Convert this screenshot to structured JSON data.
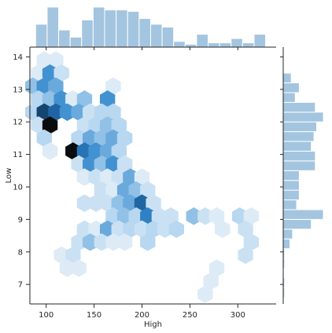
{
  "chart_data": {
    "type": "hexbin-jointplot",
    "title": "",
    "xlabel": "High",
    "ylabel": "Low",
    "xlim": [
      83,
      340
    ],
    "ylim": [
      6.4,
      14.3
    ],
    "xticks": [
      100,
      150,
      200,
      250,
      300
    ],
    "yticks": [
      7,
      8,
      9,
      10,
      11,
      12,
      13,
      14
    ],
    "grid": false,
    "legend": "none",
    "colors": {
      "hex_base": "#1f77b4",
      "marginal_bar": "#a3c5e0",
      "marginal_edge": "#ffffff"
    },
    "hexbins": [
      {
        "x": 98,
        "y": 13.9,
        "count": 1
      },
      {
        "x": 110,
        "y": 13.9,
        "count": 1
      },
      {
        "x": 92,
        "y": 13.5,
        "count": 1
      },
      {
        "x": 104,
        "y": 13.5,
        "count": 6
      },
      {
        "x": 116,
        "y": 13.5,
        "count": 2
      },
      {
        "x": 86,
        "y": 13.1,
        "count": 4
      },
      {
        "x": 98,
        "y": 13.1,
        "count": 6
      },
      {
        "x": 110,
        "y": 13.1,
        "count": 5
      },
      {
        "x": 170,
        "y": 13.1,
        "count": 1
      },
      {
        "x": 92,
        "y": 12.7,
        "count": 3
      },
      {
        "x": 104,
        "y": 12.7,
        "count": 4
      },
      {
        "x": 116,
        "y": 12.7,
        "count": 6
      },
      {
        "x": 128,
        "y": 12.7,
        "count": 1
      },
      {
        "x": 140,
        "y": 12.7,
        "count": 4
      },
      {
        "x": 164,
        "y": 12.7,
        "count": 6
      },
      {
        "x": 86,
        "y": 12.3,
        "count": 3
      },
      {
        "x": 98,
        "y": 12.3,
        "count": 11
      },
      {
        "x": 110,
        "y": 12.3,
        "count": 9
      },
      {
        "x": 122,
        "y": 12.3,
        "count": 6
      },
      {
        "x": 134,
        "y": 12.3,
        "count": 5
      },
      {
        "x": 146,
        "y": 12.3,
        "count": 2
      },
      {
        "x": 158,
        "y": 12.3,
        "count": 3
      },
      {
        "x": 170,
        "y": 12.3,
        "count": 3
      },
      {
        "x": 92,
        "y": 11.9,
        "count": 2
      },
      {
        "x": 104,
        "y": 11.9,
        "count": 14
      },
      {
        "x": 140,
        "y": 11.9,
        "count": 2
      },
      {
        "x": 152,
        "y": 11.9,
        "count": 3
      },
      {
        "x": 164,
        "y": 11.9,
        "count": 4
      },
      {
        "x": 176,
        "y": 11.9,
        "count": 3
      },
      {
        "x": 98,
        "y": 11.5,
        "count": 3
      },
      {
        "x": 134,
        "y": 11.5,
        "count": 3
      },
      {
        "x": 146,
        "y": 11.5,
        "count": 5
      },
      {
        "x": 158,
        "y": 11.5,
        "count": 4
      },
      {
        "x": 170,
        "y": 11.5,
        "count": 5
      },
      {
        "x": 182,
        "y": 11.5,
        "count": 3
      },
      {
        "x": 104,
        "y": 11.1,
        "count": 1
      },
      {
        "x": 128,
        "y": 11.1,
        "count": 14
      },
      {
        "x": 140,
        "y": 11.1,
        "count": 8
      },
      {
        "x": 152,
        "y": 11.1,
        "count": 6
      },
      {
        "x": 164,
        "y": 11.1,
        "count": 5
      },
      {
        "x": 176,
        "y": 11.1,
        "count": 3
      },
      {
        "x": 134,
        "y": 10.7,
        "count": 2
      },
      {
        "x": 146,
        "y": 10.7,
        "count": 6
      },
      {
        "x": 158,
        "y": 10.7,
        "count": 4
      },
      {
        "x": 170,
        "y": 10.7,
        "count": 6
      },
      {
        "x": 182,
        "y": 10.7,
        "count": 2
      },
      {
        "x": 140,
        "y": 10.3,
        "count": 1
      },
      {
        "x": 152,
        "y": 10.3,
        "count": 2
      },
      {
        "x": 164,
        "y": 10.3,
        "count": 1
      },
      {
        "x": 176,
        "y": 10.3,
        "count": 2
      },
      {
        "x": 188,
        "y": 10.3,
        "count": 5
      },
      {
        "x": 200,
        "y": 10.3,
        "count": 1
      },
      {
        "x": 158,
        "y": 9.9,
        "count": 2
      },
      {
        "x": 170,
        "y": 9.9,
        "count": 1
      },
      {
        "x": 182,
        "y": 9.9,
        "count": 5
      },
      {
        "x": 194,
        "y": 9.9,
        "count": 4
      },
      {
        "x": 206,
        "y": 9.9,
        "count": 2
      },
      {
        "x": 140,
        "y": 9.5,
        "count": 2
      },
      {
        "x": 152,
        "y": 9.5,
        "count": 2
      },
      {
        "x": 164,
        "y": 9.5,
        "count": 2
      },
      {
        "x": 176,
        "y": 9.5,
        "count": 4
      },
      {
        "x": 188,
        "y": 9.5,
        "count": 5
      },
      {
        "x": 200,
        "y": 9.5,
        "count": 9
      },
      {
        "x": 212,
        "y": 9.5,
        "count": 2
      },
      {
        "x": 170,
        "y": 9.1,
        "count": 3
      },
      {
        "x": 182,
        "y": 9.1,
        "count": 4
      },
      {
        "x": 194,
        "y": 9.1,
        "count": 3
      },
      {
        "x": 206,
        "y": 9.1,
        "count": 7
      },
      {
        "x": 218,
        "y": 9.1,
        "count": 2
      },
      {
        "x": 230,
        "y": 9.1,
        "count": 2
      },
      {
        "x": 254,
        "y": 9.1,
        "count": 4
      },
      {
        "x": 266,
        "y": 9.1,
        "count": 2
      },
      {
        "x": 278,
        "y": 9.1,
        "count": 1
      },
      {
        "x": 302,
        "y": 9.1,
        "count": 3
      },
      {
        "x": 314,
        "y": 9.1,
        "count": 1
      },
      {
        "x": 140,
        "y": 8.7,
        "count": 2
      },
      {
        "x": 152,
        "y": 8.7,
        "count": 1
      },
      {
        "x": 164,
        "y": 8.7,
        "count": 5
      },
      {
        "x": 176,
        "y": 8.7,
        "count": 2
      },
      {
        "x": 188,
        "y": 8.7,
        "count": 3
      },
      {
        "x": 200,
        "y": 8.7,
        "count": 2
      },
      {
        "x": 212,
        "y": 8.7,
        "count": 3
      },
      {
        "x": 224,
        "y": 8.7,
        "count": 2
      },
      {
        "x": 236,
        "y": 8.7,
        "count": 3
      },
      {
        "x": 284,
        "y": 8.7,
        "count": 1
      },
      {
        "x": 308,
        "y": 8.7,
        "count": 2
      },
      {
        "x": 134,
        "y": 8.3,
        "count": 2
      },
      {
        "x": 146,
        "y": 8.3,
        "count": 4
      },
      {
        "x": 158,
        "y": 8.3,
        "count": 2
      },
      {
        "x": 170,
        "y": 8.3,
        "count": 1
      },
      {
        "x": 182,
        "y": 8.3,
        "count": 1
      },
      {
        "x": 206,
        "y": 8.3,
        "count": 3
      },
      {
        "x": 314,
        "y": 8.3,
        "count": 2
      },
      {
        "x": 116,
        "y": 7.9,
        "count": 1
      },
      {
        "x": 128,
        "y": 7.9,
        "count": 2
      },
      {
        "x": 308,
        "y": 7.9,
        "count": 2
      },
      {
        "x": 122,
        "y": 7.5,
        "count": 1
      },
      {
        "x": 134,
        "y": 7.5,
        "count": 1
      },
      {
        "x": 278,
        "y": 7.5,
        "count": 1
      },
      {
        "x": 272,
        "y": 7.1,
        "count": 1
      },
      {
        "x": 266,
        "y": 6.7,
        "count": 1
      }
    ],
    "marginal_x": {
      "bin_edges": [
        89,
        101,
        113,
        125,
        137,
        149,
        161,
        173,
        185,
        197,
        209,
        221,
        233,
        245,
        257,
        269,
        281,
        293,
        305,
        317,
        329
      ],
      "counts": [
        16,
        28,
        12,
        7,
        19,
        28,
        26,
        26,
        25,
        20,
        16,
        14,
        4,
        2,
        9,
        3,
        3,
        6,
        3,
        9
      ]
    },
    "marginal_y": {
      "bin_edges": [
        6.6,
        6.9,
        7.2,
        7.5,
        7.8,
        8.1,
        8.4,
        8.7,
        9.0,
        9.3,
        9.6,
        9.9,
        10.2,
        10.5,
        10.8,
        11.1,
        11.4,
        11.7,
        12.0,
        12.3,
        12.6,
        12.9,
        13.2,
        13.5,
        13.8
      ],
      "counts": [
        1,
        1,
        0,
        1,
        1,
        5,
        7,
        21,
        30,
        10,
        12,
        12,
        12,
        24,
        24,
        21,
        23,
        25,
        30,
        24,
        9,
        12,
        6,
        0
      ]
    }
  }
}
